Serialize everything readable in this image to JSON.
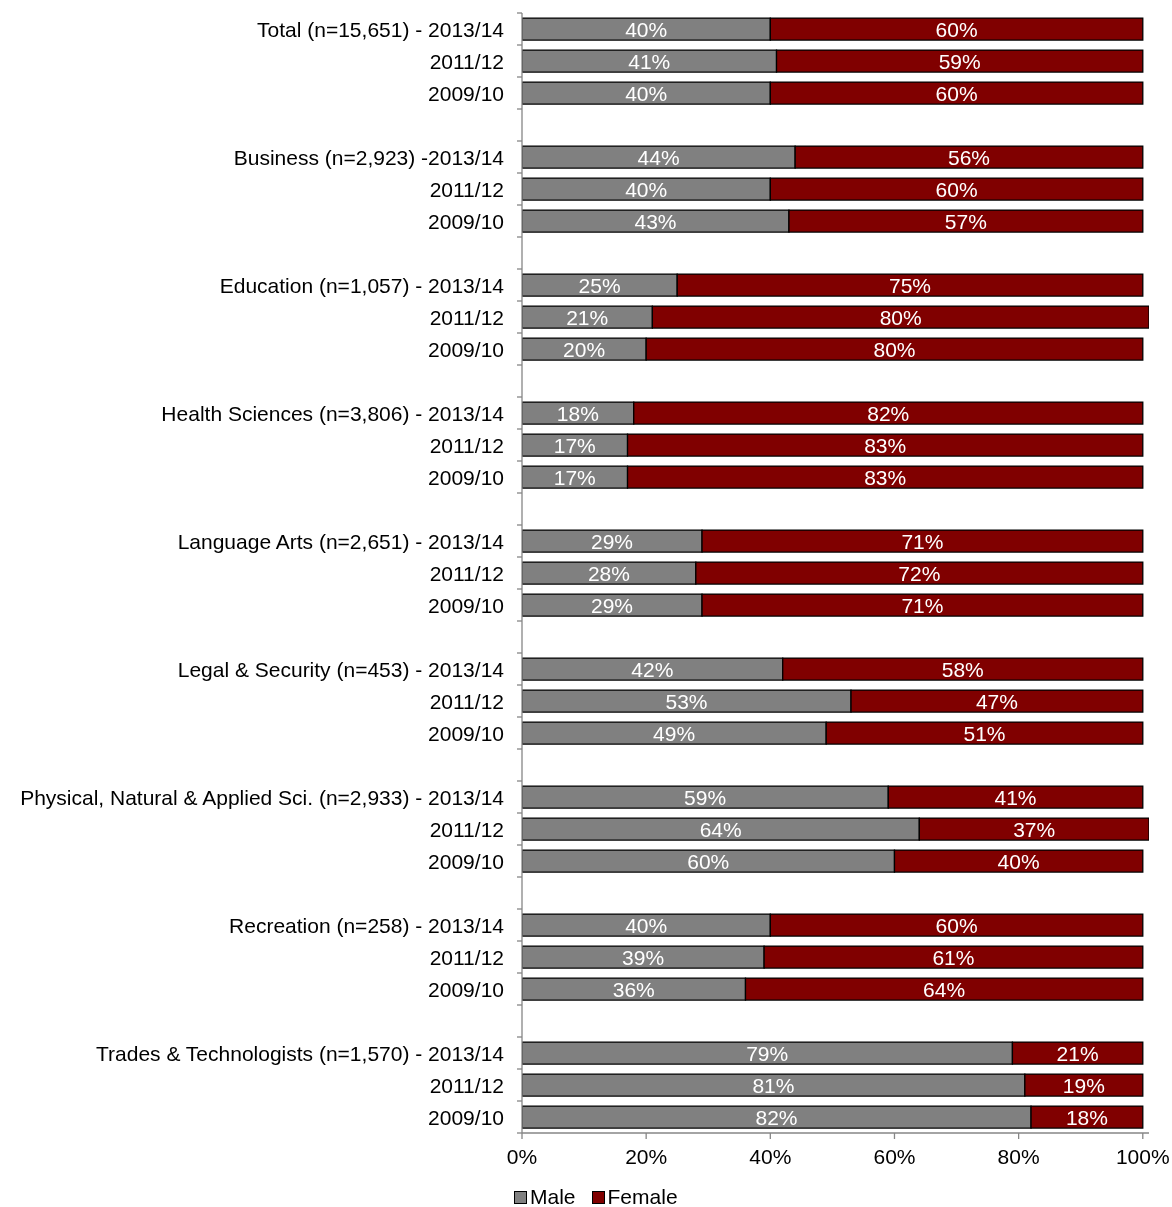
{
  "chart_data": {
    "type": "bar",
    "orientation": "horizontal",
    "stacked": true,
    "categories": [
      "Total (n=15,651) - 2013/14",
      "2011/12",
      "2009/10",
      null,
      "Business (n=2,923) -2013/14",
      "2011/12",
      "2009/10",
      null,
      "Education (n=1,057) - 2013/14",
      "2011/12",
      "2009/10",
      null,
      "Health Sciences (n=3,806) - 2013/14",
      "2011/12",
      "2009/10",
      null,
      "Language Arts (n=2,651) - 2013/14",
      "2011/12",
      "2009/10",
      null,
      "Legal & Security (n=453) - 2013/14",
      "2011/12",
      "2009/10",
      null,
      "Physical, Natural & Applied Sci. (n=2,933) - 2013/14",
      "2011/12",
      "2009/10",
      null,
      "Recreation (n=258) - 2013/14",
      "2011/12",
      "2009/10",
      null,
      "Trades & Technologists (n=1,570) - 2013/14",
      "2011/12",
      "2009/10"
    ],
    "series": [
      {
        "name": "Male",
        "color": "#808080",
        "values": [
          40,
          41,
          40,
          null,
          44,
          40,
          43,
          null,
          25,
          21,
          20,
          null,
          18,
          17,
          17,
          null,
          29,
          28,
          29,
          null,
          42,
          53,
          49,
          null,
          59,
          64,
          60,
          null,
          40,
          39,
          36,
          null,
          79,
          81,
          82
        ],
        "value_labels": [
          "40%",
          "41%",
          "40%",
          null,
          "44%",
          "40%",
          "43%",
          null,
          "25%",
          "21%",
          "20%",
          null,
          "18%",
          "17%",
          "17%",
          null,
          "29%",
          "28%",
          "29%",
          null,
          "42%",
          "53%",
          "49%",
          null,
          "59%",
          "64%",
          "60%",
          null,
          "40%",
          "39%",
          "36%",
          null,
          "79%",
          "81%",
          "82%"
        ]
      },
      {
        "name": "Female",
        "color": "#800000",
        "values": [
          60,
          59,
          60,
          null,
          56,
          60,
          57,
          null,
          75,
          80,
          80,
          null,
          82,
          83,
          83,
          null,
          71,
          72,
          71,
          null,
          58,
          47,
          51,
          null,
          41,
          37,
          40,
          null,
          60,
          61,
          64,
          null,
          21,
          19,
          18
        ],
        "value_labels": [
          "60%",
          "59%",
          "60%",
          null,
          "56%",
          "60%",
          "57%",
          null,
          "75%",
          "80%",
          "80%",
          null,
          "82%",
          "83%",
          "83%",
          null,
          "71%",
          "72%",
          "71%",
          null,
          "58%",
          "47%",
          "51%",
          null,
          "41%",
          "37%",
          "40%",
          null,
          "60%",
          "61%",
          "64%",
          null,
          "21%",
          "19%",
          "18%"
        ]
      }
    ],
    "xlim": [
      0,
      101
    ],
    "xticks": [
      {
        "value": 0,
        "label": "0%"
      },
      {
        "value": 20,
        "label": "20%"
      },
      {
        "value": 40,
        "label": "40%"
      },
      {
        "value": 60,
        "label": "60%"
      },
      {
        "value": 80,
        "label": "80%"
      },
      {
        "value": 100,
        "label": "100%"
      }
    ],
    "legend": "bottom"
  }
}
